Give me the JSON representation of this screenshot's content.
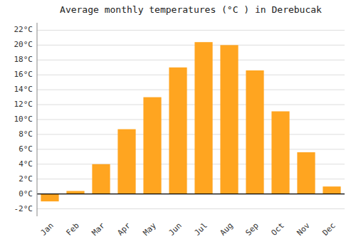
{
  "chart_data": {
    "type": "bar",
    "title": "Average monthly temperatures (°C ) in Derebucak",
    "categories": [
      "Jan",
      "Feb",
      "Mar",
      "Apr",
      "May",
      "Jun",
      "Jul",
      "Aug",
      "Sep",
      "Oct",
      "Nov",
      "Dec"
    ],
    "values": [
      -1.0,
      0.4,
      4.0,
      8.7,
      13.0,
      17.0,
      20.4,
      20.0,
      16.6,
      11.1,
      5.6,
      1.0
    ],
    "color": "#FFA520",
    "ylim": [
      -3,
      23
    ],
    "yticks": [
      {
        "value": -2,
        "label": "-2°C"
      },
      {
        "value": 0,
        "label": "0°C"
      },
      {
        "value": 2,
        "label": "2°C"
      },
      {
        "value": 4,
        "label": "4°C"
      },
      {
        "value": 6,
        "label": "6°C"
      },
      {
        "value": 8,
        "label": "8°C"
      },
      {
        "value": 10,
        "label": "10°C"
      },
      {
        "value": 12,
        "label": "12°C"
      },
      {
        "value": 14,
        "label": "14°C"
      },
      {
        "value": 16,
        "label": "16°C"
      },
      {
        "value": 18,
        "label": "18°C"
      },
      {
        "value": 20,
        "label": "20°C"
      },
      {
        "value": 22,
        "label": "22°C"
      }
    ],
    "grid": true
  }
}
